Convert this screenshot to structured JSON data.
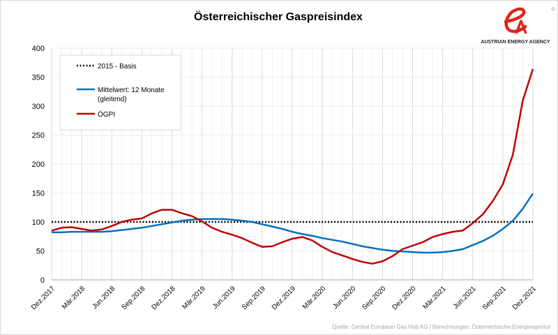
{
  "chart_data": {
    "type": "line",
    "title": "Österreichischer  Gaspreisindex",
    "xlabel": "",
    "ylabel": "",
    "ylim": [
      0,
      400
    ],
    "yticks": [
      0,
      50,
      100,
      150,
      200,
      250,
      300,
      350,
      400
    ],
    "grid": true,
    "legend_position": "top-left",
    "x": [
      "Dez.2017",
      "Jan.2018",
      "Feb.2018",
      "Mär.2018",
      "Apr.2018",
      "Mai.2018",
      "Jun.2018",
      "Jul.2018",
      "Aug.2018",
      "Sep.2018",
      "Okt.2018",
      "Nov.2018",
      "Dez.2018",
      "Jan.2019",
      "Feb.2019",
      "Mär.2019",
      "Apr.2019",
      "Mai.2019",
      "Jun.2019",
      "Jul.2019",
      "Aug.2019",
      "Sep.2019",
      "Okt.2019",
      "Nov.2019",
      "Dez.2019",
      "Jan.2020",
      "Feb.2020",
      "Mär.2020",
      "Apr.2020",
      "Mai.2020",
      "Jun.2020",
      "Jul.2020",
      "Aug.2020",
      "Sep.2020",
      "Okt.2020",
      "Nov.2020",
      "Dez.2020",
      "Jan.2021",
      "Feb.2021",
      "Mär.2021",
      "Apr.2021",
      "Mai.2021",
      "Jun.2021",
      "Jul.2021",
      "Aug.2021",
      "Sep.2021",
      "Okt.2021",
      "Nov.2021",
      "Dez.2021"
    ],
    "xtick_labels": [
      "Dez.2017",
      "Mär.2018",
      "Jun.2018",
      "Sep.2018",
      "Dez.2018",
      "Mär.2019",
      "Jun.2019",
      "Sep.2019",
      "Dez.2019",
      "Mär.2020",
      "Jun.2020",
      "Sep.2020",
      "Dez.2020",
      "Mär.2021",
      "Jun.2021",
      "Sep.2021",
      "Dez.2021"
    ],
    "series": [
      {
        "name": "2015 - Basis",
        "color": "#000000",
        "style": "dotted",
        "values": [
          100,
          100,
          100,
          100,
          100,
          100,
          100,
          100,
          100,
          100,
          100,
          100,
          100,
          100,
          100,
          100,
          100,
          100,
          100,
          100,
          100,
          100,
          100,
          100,
          100,
          100,
          100,
          100,
          100,
          100,
          100,
          100,
          100,
          100,
          100,
          100,
          100,
          100,
          100,
          100,
          100,
          100,
          100,
          100,
          100,
          100,
          100,
          100,
          100
        ]
      },
      {
        "name": "Mittelwert: 12 Monate",
        "name_line2": "(gleitend)",
        "color": "#0070c0",
        "style": "solid",
        "values": [
          82,
          82,
          83,
          83,
          83,
          83,
          84,
          86,
          88,
          90,
          93,
          96,
          99,
          102,
          104,
          105,
          105,
          105,
          104,
          102,
          100,
          96,
          92,
          88,
          83,
          79,
          76,
          72,
          69,
          66,
          62,
          58,
          55,
          52,
          50,
          49,
          48,
          47,
          47,
          48,
          50,
          53,
          60,
          67,
          76,
          88,
          102,
          123,
          149
        ]
      },
      {
        "name": "ÖGPI",
        "color": "#c00000",
        "style": "solid",
        "values": [
          85,
          90,
          91,
          88,
          85,
          87,
          93,
          100,
          104,
          106,
          115,
          121,
          121,
          115,
          110,
          101,
          90,
          83,
          78,
          72,
          64,
          57,
          58,
          65,
          71,
          74,
          68,
          57,
          48,
          42,
          36,
          31,
          28,
          32,
          41,
          53,
          59,
          65,
          74,
          79,
          83,
          85,
          98,
          113,
          136,
          165,
          216,
          310,
          364
        ]
      }
    ]
  },
  "logo": {
    "text": "AUSTRIAN ENERGY AGENCY",
    "mark": "eA",
    "color": "#e2231a"
  },
  "source": "Quelle: Central European Gas Hub AG | Berechnungen: Österreichische Energieagentur"
}
